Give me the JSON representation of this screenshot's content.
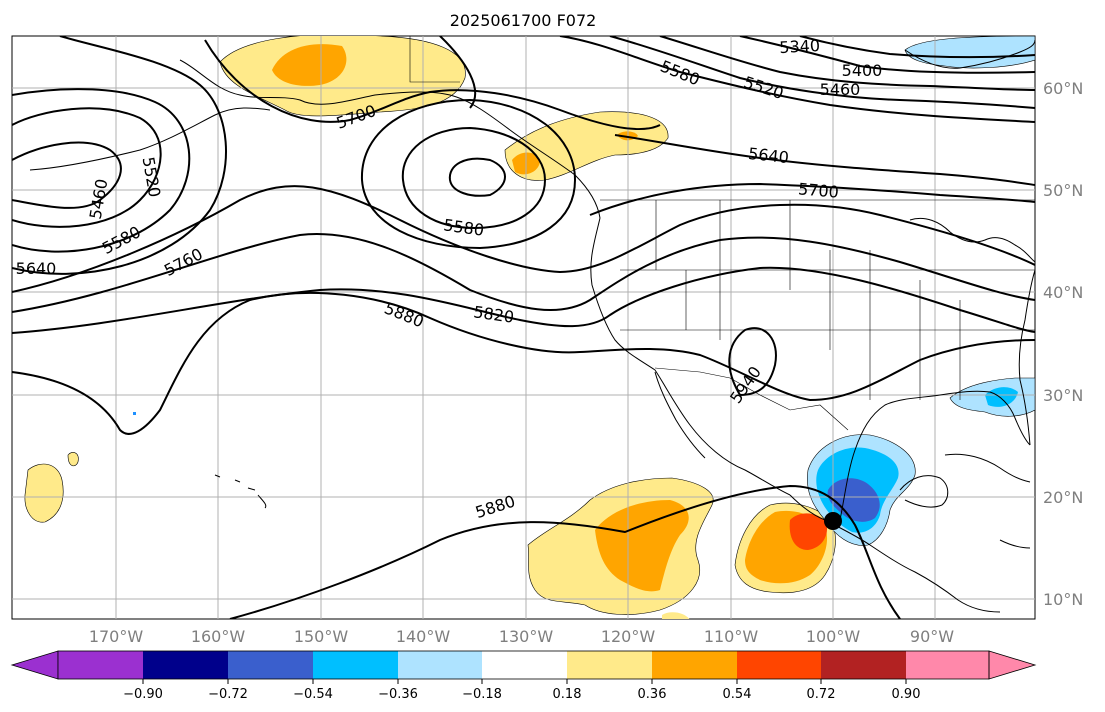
{
  "map": {
    "title": "2025061700 F072",
    "lon_labels": [
      "170°W",
      "160°W",
      "150°W",
      "140°W",
      "130°W",
      "120°W",
      "110°W",
      "100°W",
      "90°W"
    ],
    "lat_labels": [
      "60°N",
      "50°N",
      "40°N",
      "30°N",
      "20°N",
      "10°N"
    ],
    "contour_labels": [
      "5340",
      "5400",
      "5460",
      "5520",
      "5580",
      "5640",
      "5700",
      "5460",
      "5520",
      "5580",
      "5640",
      "5760",
      "5700",
      "5580",
      "5820",
      "5880",
      "5940",
      "5880"
    ],
    "marker": "storm-center-dot"
  },
  "colorbar": {
    "tick_labels": [
      "−0.90",
      "−0.72",
      "−0.54",
      "−0.36",
      "−0.18",
      "0.18",
      "0.36",
      "0.54",
      "0.72",
      "0.90"
    ],
    "colors": [
      "#9b30d0",
      "#00008b",
      "#3a5fcd",
      "#00bfff",
      "#aee3ff",
      "#ffffff",
      "#ffea8a",
      "#ffa500",
      "#ff4500",
      "#b22222",
      "#ff88aa"
    ]
  }
}
